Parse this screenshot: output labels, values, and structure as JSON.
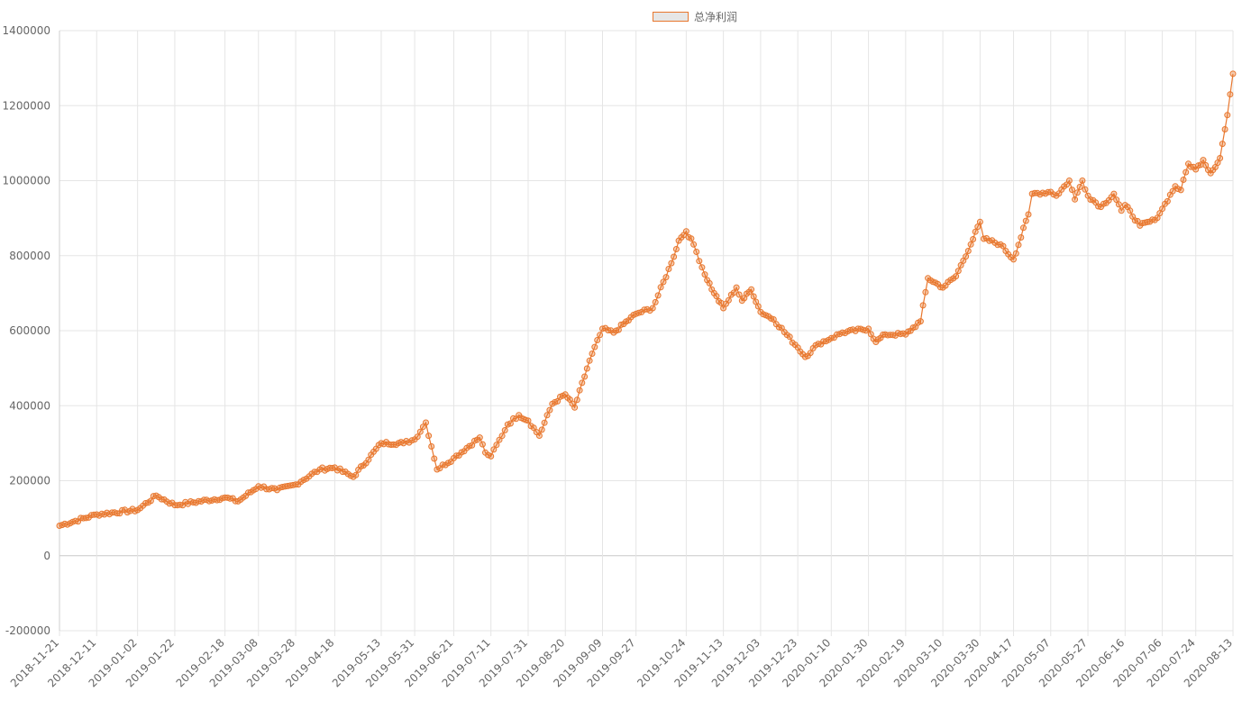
{
  "chart_data": {
    "type": "line",
    "legend_placement": "top-center",
    "grid": true,
    "ylim": [
      -200000,
      1400000
    ],
    "y_ticks": [
      "1400000",
      "1200000",
      "1000000",
      "800000",
      "600000",
      "400000",
      "200000",
      "0",
      "-200000"
    ],
    "x_tick_labels": [
      "2018-11-21",
      "2018-12-11",
      "2019-01-02",
      "2019-01-22",
      "2019-02-18",
      "2019-03-08",
      "2019-03-28",
      "2019-04-18",
      "2019-05-13",
      "2019-05-31",
      "2019-06-21",
      "2019-07-11",
      "2019-07-31",
      "2019-08-20",
      "2019-09-09",
      "2019-09-27",
      "2019-10-24",
      "2019-11-13",
      "2019-12-03",
      "2019-12-23",
      "2020-01-10",
      "2020-01-30",
      "2020-02-19",
      "2020-03-10",
      "2020-03-30",
      "2020-04-17",
      "2020-05-07",
      "2020-05-27",
      "2020-06-16",
      "2020-07-06",
      "2020-07-24",
      "2020-08-13"
    ],
    "colors": {
      "series": "#e8772e",
      "point_fill": "rgba(232,119,46,0.35)",
      "grid": "#e5e5e5",
      "zero_line": "#c8c8c8"
    },
    "series": [
      {
        "name": "总净利润",
        "points": [
          [
            "2018-11-21",
            80000
          ],
          [
            "2018-12-11",
            110000
          ],
          [
            "2019-01-02",
            122000
          ],
          [
            "2019-01-12",
            160000
          ],
          [
            "2019-01-22",
            135000
          ],
          [
            "2019-02-18",
            155000
          ],
          [
            "2019-02-25",
            145000
          ],
          [
            "2019-03-08",
            185000
          ],
          [
            "2019-03-18",
            175000
          ],
          [
            "2019-03-28",
            190000
          ],
          [
            "2019-04-10",
            230000
          ],
          [
            "2019-04-18",
            235000
          ],
          [
            "2019-04-28",
            210000
          ],
          [
            "2019-05-13",
            300000
          ],
          [
            "2019-05-25",
            300000
          ],
          [
            "2019-05-31",
            310000
          ],
          [
            "2019-06-06",
            355000
          ],
          [
            "2019-06-12",
            230000
          ],
          [
            "2019-06-21",
            260000
          ],
          [
            "2019-07-05",
            315000
          ],
          [
            "2019-07-08",
            275000
          ],
          [
            "2019-07-11",
            265000
          ],
          [
            "2019-07-20",
            350000
          ],
          [
            "2019-07-26",
            375000
          ],
          [
            "2019-07-31",
            360000
          ],
          [
            "2019-08-06",
            320000
          ],
          [
            "2019-08-13",
            405000
          ],
          [
            "2019-08-20",
            430000
          ],
          [
            "2019-08-25",
            395000
          ],
          [
            "2019-09-02",
            520000
          ],
          [
            "2019-09-09",
            605000
          ],
          [
            "2019-09-15",
            595000
          ],
          [
            "2019-09-27",
            645000
          ],
          [
            "2019-10-06",
            660000
          ],
          [
            "2019-10-16",
            780000
          ],
          [
            "2019-10-20",
            840000
          ],
          [
            "2019-10-24",
            865000
          ],
          [
            "2019-10-28",
            830000
          ],
          [
            "2019-11-03",
            750000
          ],
          [
            "2019-11-08",
            700000
          ],
          [
            "2019-11-13",
            660000
          ],
          [
            "2019-11-20",
            715000
          ],
          [
            "2019-11-23",
            680000
          ],
          [
            "2019-11-28",
            710000
          ],
          [
            "2019-12-03",
            650000
          ],
          [
            "2019-12-10",
            630000
          ],
          [
            "2019-12-23",
            555000
          ],
          [
            "2019-12-27",
            530000
          ],
          [
            "2020-01-03",
            565000
          ],
          [
            "2020-01-10",
            580000
          ],
          [
            "2020-01-16",
            595000
          ],
          [
            "2020-01-30",
            605000
          ],
          [
            "2020-02-03",
            570000
          ],
          [
            "2020-02-08",
            590000
          ],
          [
            "2020-02-19",
            590000
          ],
          [
            "2020-02-27",
            625000
          ],
          [
            "2020-03-02",
            740000
          ],
          [
            "2020-03-10",
            715000
          ],
          [
            "2020-03-17",
            745000
          ],
          [
            "2020-03-25",
            830000
          ],
          [
            "2020-03-30",
            890000
          ],
          [
            "2020-04-01",
            845000
          ],
          [
            "2020-04-10",
            830000
          ],
          [
            "2020-04-17",
            790000
          ],
          [
            "2020-04-25",
            910000
          ],
          [
            "2020-04-27",
            965000
          ],
          [
            "2020-05-07",
            970000
          ],
          [
            "2020-05-10",
            960000
          ],
          [
            "2020-05-17",
            1000000
          ],
          [
            "2020-05-20",
            950000
          ],
          [
            "2020-05-24",
            1000000
          ],
          [
            "2020-05-27",
            960000
          ],
          [
            "2020-06-03",
            930000
          ],
          [
            "2020-06-10",
            965000
          ],
          [
            "2020-06-14",
            920000
          ],
          [
            "2020-06-16",
            935000
          ],
          [
            "2020-06-24",
            880000
          ],
          [
            "2020-07-02",
            895000
          ],
          [
            "2020-07-06",
            925000
          ],
          [
            "2020-07-13",
            985000
          ],
          [
            "2020-07-16",
            975000
          ],
          [
            "2020-07-20",
            1045000
          ],
          [
            "2020-07-24",
            1030000
          ],
          [
            "2020-07-28",
            1055000
          ],
          [
            "2020-08-01",
            1020000
          ],
          [
            "2020-08-06",
            1060000
          ],
          [
            "2020-08-10",
            1175000
          ],
          [
            "2020-08-13",
            1285000
          ]
        ]
      }
    ]
  }
}
